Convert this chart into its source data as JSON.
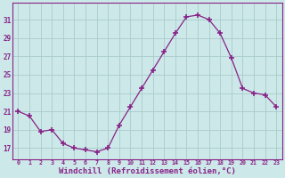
{
  "x": [
    0,
    1,
    2,
    3,
    4,
    5,
    6,
    7,
    8,
    9,
    10,
    11,
    12,
    13,
    14,
    15,
    16,
    17,
    18,
    19,
    20,
    21,
    22,
    23
  ],
  "y": [
    21.0,
    20.5,
    18.8,
    19.0,
    17.5,
    17.0,
    16.8,
    16.6,
    17.0,
    19.5,
    21.5,
    23.5,
    25.5,
    27.5,
    29.5,
    31.3,
    31.5,
    31.0,
    29.5,
    26.8,
    23.5,
    23.0,
    22.8,
    21.5
  ],
  "line_color": "#882288",
  "marker": "+",
  "marker_size": 4,
  "marker_lw": 1.2,
  "bg_color": "#cce8e8",
  "grid_color": "#aacccc",
  "tick_color": "#882288",
  "label_color": "#882288",
  "xlabel": "Windchill (Refroidissement éolien,°C)",
  "xlabel_fontsize": 6.5,
  "ytick_labels": [
    "17",
    "19",
    "21",
    "23",
    "25",
    "27",
    "29",
    "31"
  ],
  "ytick_values": [
    17,
    19,
    21,
    23,
    25,
    27,
    29,
    31
  ],
  "ylim": [
    15.8,
    32.8
  ],
  "xlim": [
    -0.5,
    23.5
  ],
  "xtick_labels": [
    "0",
    "1",
    "2",
    "3",
    "4",
    "5",
    "6",
    "7",
    "8",
    "9",
    "10",
    "11",
    "12",
    "13",
    "14",
    "15",
    "16",
    "17",
    "18",
    "19",
    "20",
    "21",
    "22",
    "23"
  ],
  "xtick_values": [
    0,
    1,
    2,
    3,
    4,
    5,
    6,
    7,
    8,
    9,
    10,
    11,
    12,
    13,
    14,
    15,
    16,
    17,
    18,
    19,
    20,
    21,
    22,
    23
  ]
}
